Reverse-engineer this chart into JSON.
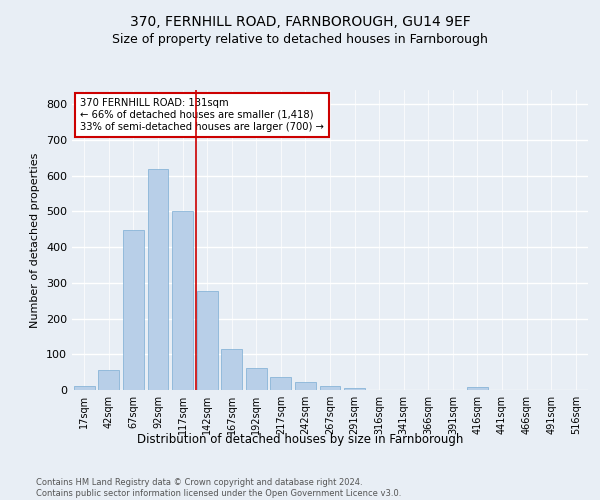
{
  "title1": "370, FERNHILL ROAD, FARNBOROUGH, GU14 9EF",
  "title2": "Size of property relative to detached houses in Farnborough",
  "xlabel": "Distribution of detached houses by size in Farnborough",
  "ylabel": "Number of detached properties",
  "footer1": "Contains HM Land Registry data © Crown copyright and database right 2024.",
  "footer2": "Contains public sector information licensed under the Open Government Licence v3.0.",
  "bar_labels": [
    "17sqm",
    "42sqm",
    "67sqm",
    "92sqm",
    "117sqm",
    "142sqm",
    "167sqm",
    "192sqm",
    "217sqm",
    "242sqm",
    "267sqm",
    "291sqm",
    "316sqm",
    "341sqm",
    "366sqm",
    "391sqm",
    "416sqm",
    "441sqm",
    "466sqm",
    "491sqm",
    "516sqm"
  ],
  "bar_values": [
    12,
    55,
    447,
    618,
    500,
    278,
    115,
    62,
    37,
    23,
    10,
    7,
    0,
    0,
    0,
    0,
    8,
    0,
    0,
    0,
    0
  ],
  "bar_color": "#b8cfe8",
  "bar_edge_color": "#7badd4",
  "background_color": "#e8eef5",
  "grid_color": "#ffffff",
  "vline_color": "#cc0000",
  "annotation_text": "370 FERNHILL ROAD: 131sqm\n← 66% of detached houses are smaller (1,418)\n33% of semi-detached houses are larger (700) →",
  "annotation_box_color": "#ffffff",
  "annotation_box_edge": "#cc0000",
  "ylim": [
    0,
    840
  ],
  "yticks": [
    0,
    100,
    200,
    300,
    400,
    500,
    600,
    700,
    800
  ],
  "title_fontsize": 10,
  "subtitle_fontsize": 9
}
